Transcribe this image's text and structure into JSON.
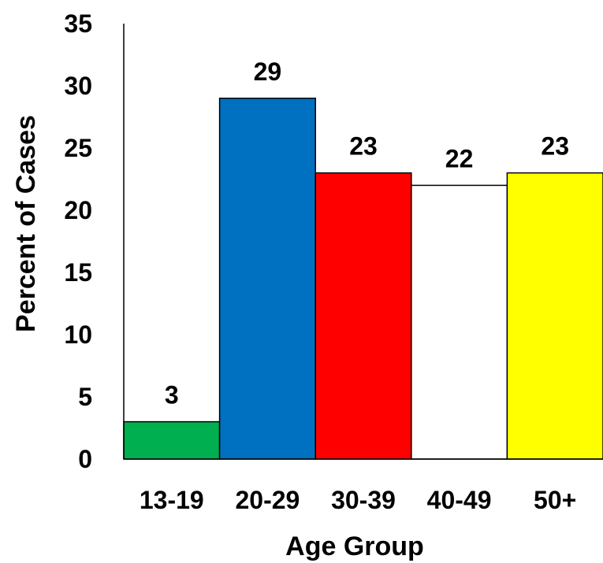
{
  "chart_data": {
    "type": "bar",
    "title": "",
    "xlabel": "Age Group",
    "ylabel": "Percent of Cases",
    "categories": [
      "13-19",
      "20-29",
      "30-39",
      "40-49",
      "50+"
    ],
    "values": [
      3,
      29,
      23,
      22,
      23
    ],
    "data_labels": [
      "3",
      "29",
      "23",
      "22",
      "23"
    ],
    "colors": [
      "#00b050",
      "#0070c0",
      "#ff0000",
      "#ffffff",
      "#ffff00"
    ],
    "ylim": [
      0,
      35
    ],
    "yticks": [
      0,
      5,
      10,
      15,
      20,
      25,
      30,
      35
    ],
    "grid": false,
    "legend": "none"
  }
}
